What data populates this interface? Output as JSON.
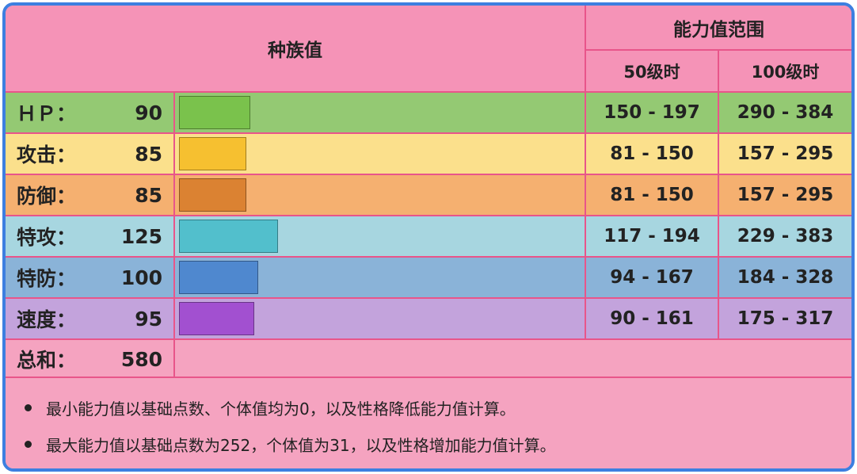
{
  "header": {
    "base_stats": "种族值",
    "stat_range": "能力值范围",
    "lv50": "50级时",
    "lv100": "100级时"
  },
  "rows": [
    {
      "label": "ＨＰ：",
      "value": "90",
      "base": 90,
      "range50": "150 - 197",
      "range100": "290 - 384",
      "row_color": "#94c973",
      "bar_color": "#7ac24c"
    },
    {
      "label": "攻击：",
      "value": "85",
      "base": 85,
      "range50": "81 - 150",
      "range100": "157 - 295",
      "row_color": "#fbe08c",
      "bar_color": "#f6c030"
    },
    {
      "label": "防御：",
      "value": "85",
      "base": 85,
      "range50": "81 - 150",
      "range100": "157 - 295",
      "row_color": "#f5b070",
      "bar_color": "#db8232"
    },
    {
      "label": "特攻：",
      "value": "125",
      "base": 125,
      "range50": "117 - 194",
      "range100": "229 - 383",
      "row_color": "#a7d6e0",
      "bar_color": "#52bfcc"
    },
    {
      "label": "特防：",
      "value": "100",
      "base": 100,
      "range50": "94 - 167",
      "range100": "184 - 328",
      "row_color": "#8ab3d8",
      "bar_color": "#4f88cf"
    },
    {
      "label": "速度：",
      "value": "95",
      "base": 95,
      "range50": "90 - 161",
      "range100": "175 - 317",
      "row_color": "#c3a3dc",
      "bar_color": "#a250d0"
    }
  ],
  "total": {
    "label": "总和：",
    "value": "580"
  },
  "bar_max": 255,
  "notes": [
    "最小能力值以基础点数、个体值均为0，以及性格降低能力值计算。",
    "最大能力值以基础点数为252，个体值为31，以及性格增加能力值计算。"
  ],
  "colors": {
    "header_bg": "#f593b7",
    "border": "#3d7fe0",
    "grid": "#e8558a"
  }
}
